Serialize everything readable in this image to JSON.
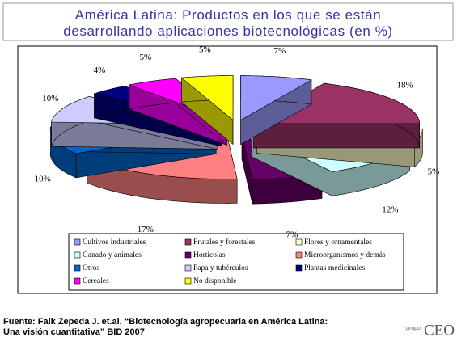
{
  "chart_data": {
    "type": "pie",
    "title": "América Latina: Productos en los que se están desarrollando aplicaciones biotecnológicas (en %)",
    "categories": [
      "Cultivos industriales",
      "Frutales y forestales",
      "Flores y ornamentales",
      "Ganado y animales",
      "Horticolas",
      "Microorganismos y demás",
      "Otros",
      "Papa y tubérculos",
      "Plantas medicinales",
      "Cereales",
      "No disponible"
    ],
    "values": [
      7,
      18,
      5,
      12,
      7,
      17,
      10,
      10,
      4,
      5,
      5
    ],
    "value_labels": [
      "7%",
      "18%",
      "5%",
      "12%",
      "7%",
      "17%",
      "10%",
      "10%",
      "4%",
      "5%",
      "5%"
    ],
    "colors": [
      "#9999ff",
      "#993366",
      "#ffffcc",
      "#ccffff",
      "#660066",
      "#ff8080",
      "#0066cc",
      "#ccccff",
      "#000080",
      "#ff00ff",
      "#ffff00"
    ],
    "legend": "bottom"
  },
  "source": "Fuente: Falk Zepeda J. et.al. “Biotecnología agropecuaria en América Latina: Una visión cuantitativa” BID 2007",
  "logo": {
    "small": "grupo",
    "text": "CEO"
  }
}
